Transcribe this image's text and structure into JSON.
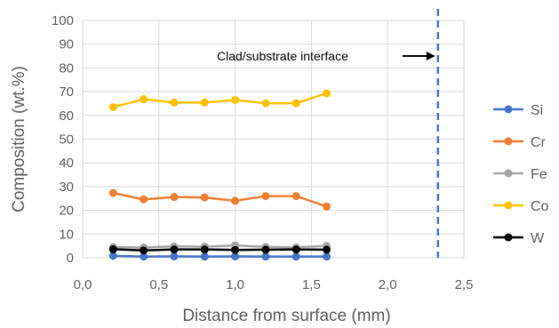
{
  "chart_data": {
    "type": "line",
    "xlabel": "Distance from surface (mm)",
    "ylabel": "Composition (wt.%)",
    "xlim": [
      0,
      2.5
    ],
    "ylim": [
      0,
      100
    ],
    "x_ticks": [
      "0,0",
      "0,5",
      "1,0",
      "1,5",
      "2,0",
      "2,5"
    ],
    "y_ticks": [
      "0",
      "10",
      "20",
      "30",
      "40",
      "50",
      "60",
      "70",
      "80",
      "90",
      "100"
    ],
    "grid": true,
    "legend_position": "right",
    "x": [
      0.2,
      0.4,
      0.6,
      0.8,
      1.0,
      1.2,
      1.4,
      1.6
    ],
    "series": [
      {
        "name": "Si",
        "color": "#4472C4",
        "values": [
          0.8,
          0.5,
          0.6,
          0.5,
          0.6,
          0.5,
          0.5,
          0.5
        ]
      },
      {
        "name": "Cr",
        "color": "#ED7D31",
        "values": [
          27.3,
          24.6,
          25.6,
          25.4,
          24.0,
          26.0,
          26.0,
          21.6
        ]
      },
      {
        "name": "Fe",
        "color": "#A5A5A5",
        "values": [
          4.5,
          4.3,
          4.8,
          4.7,
          5.2,
          4.6,
          4.4,
          5.0
        ]
      },
      {
        "name": "Co",
        "color": "#FFC000",
        "values": [
          63.5,
          66.8,
          65.4,
          65.4,
          66.5,
          65.1,
          65.1,
          69.3
        ]
      },
      {
        "name": "W",
        "color": "#000000",
        "values": [
          3.6,
          3.1,
          3.5,
          3.5,
          3.3,
          3.4,
          3.5,
          3.4
        ]
      }
    ],
    "interface_line": {
      "x": 2.33,
      "color": "#4472C4",
      "style": "dashed"
    },
    "annotation": {
      "text": "Clad/substrate interface",
      "arrow_target": "interface-line"
    }
  }
}
